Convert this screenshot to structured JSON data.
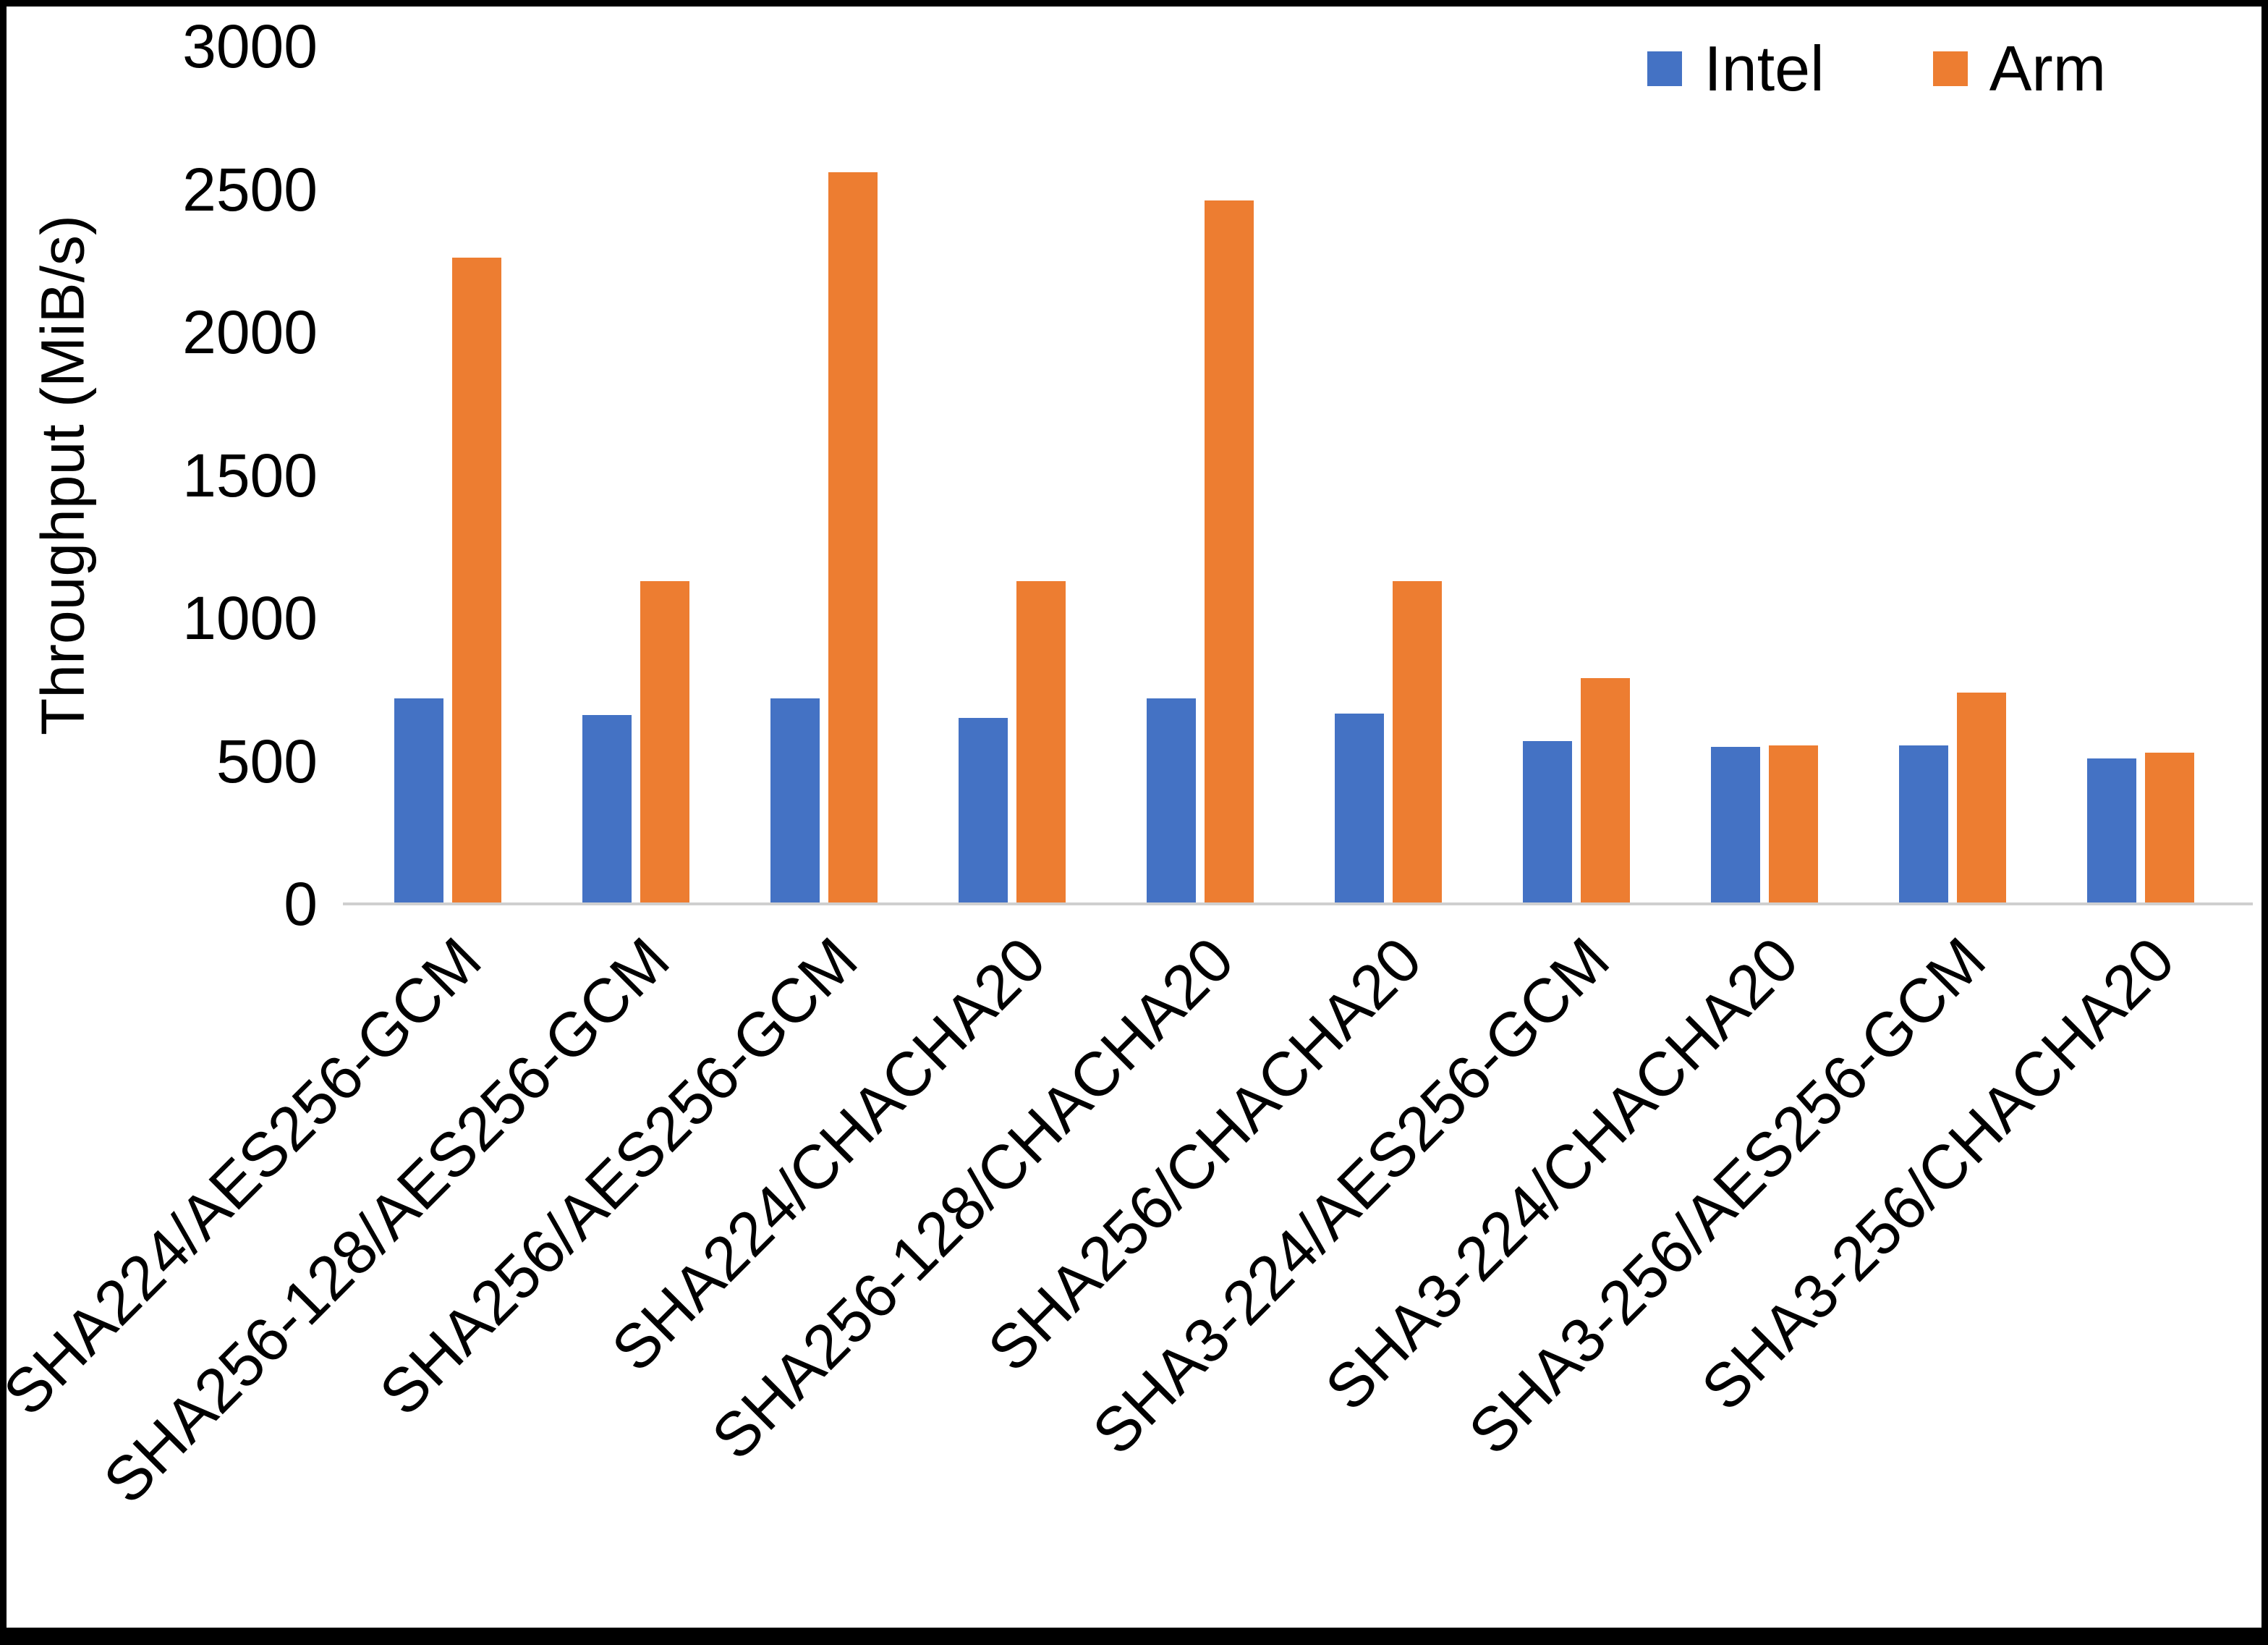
{
  "chart_data": {
    "type": "bar",
    "title": "",
    "ylabel": "Throughput (MiB/s)",
    "xlabel": "",
    "ylim": [
      0,
      3000
    ],
    "yticks": [
      0,
      500,
      1000,
      1500,
      2000,
      2500,
      3000
    ],
    "grid": false,
    "legend_position": "top-right",
    "categories": [
      "SHA224/AES256-GCM",
      "SHA256-128/AES256-GCM",
      "SHA256/AES256-GCM",
      "SHA224/CHACHA20",
      "SHA256-128/CHACHA20",
      "SHA256/CHACHA20",
      "SHA3-224/AES256-GCM",
      "SHA3-224/CHACHA20",
      "SHA3-256/AES256-GCM",
      "SHA3-256/CHACHA20"
    ],
    "series": [
      {
        "name": "Intel",
        "color": "#4472C4",
        "values": [
          720,
          660,
          720,
          650,
          720,
          665,
          570,
          550,
          555,
          510
        ]
      },
      {
        "name": "Arm",
        "color": "#ED7D31",
        "values": [
          2260,
          1130,
          2560,
          1130,
          2460,
          1130,
          790,
          555,
          740,
          530
        ]
      }
    ]
  }
}
